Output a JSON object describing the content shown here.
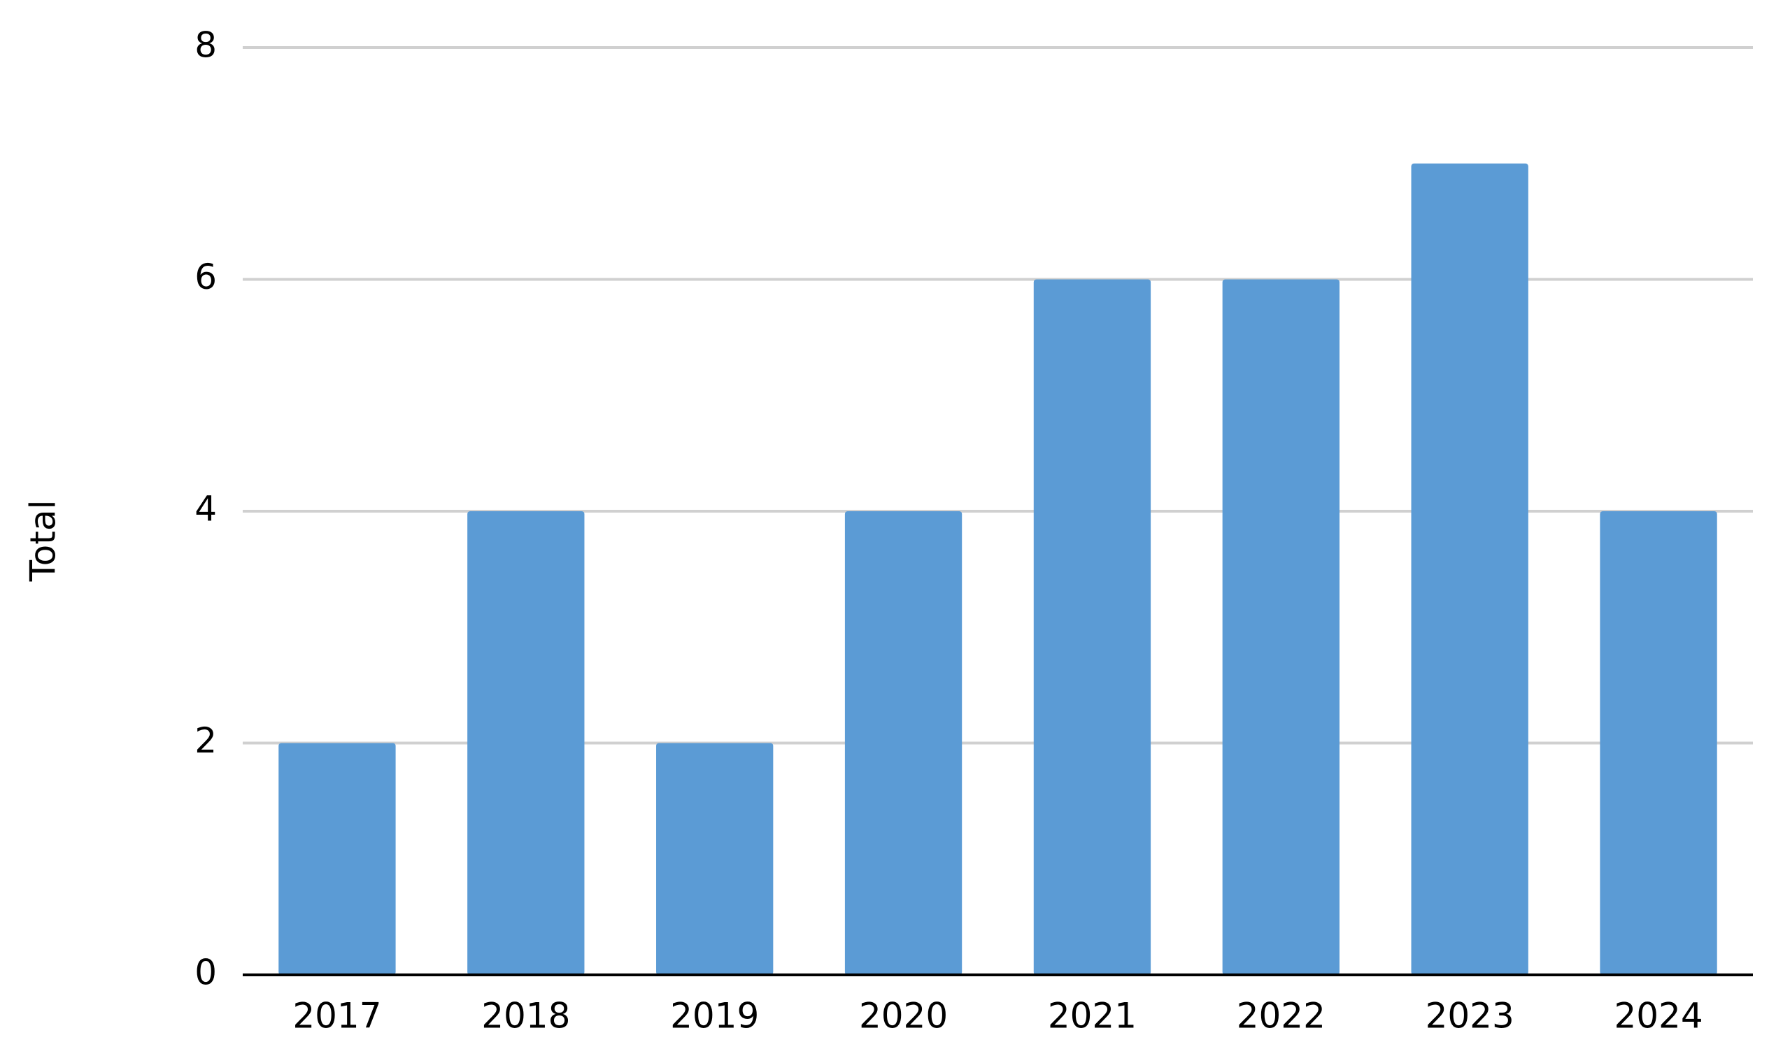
{
  "chart_data": {
    "type": "bar",
    "y_label": "Total",
    "categories": [
      "2017",
      "2018",
      "2019",
      "2020",
      "2021",
      "2022",
      "2023",
      "2024"
    ],
    "values": [
      2,
      4,
      2,
      4,
      6,
      6,
      7,
      4
    ],
    "color": "#5b9bd5",
    "ylim": [
      0,
      8
    ],
    "yticks": [
      0,
      2,
      4,
      6,
      8
    ],
    "grid": true
  }
}
